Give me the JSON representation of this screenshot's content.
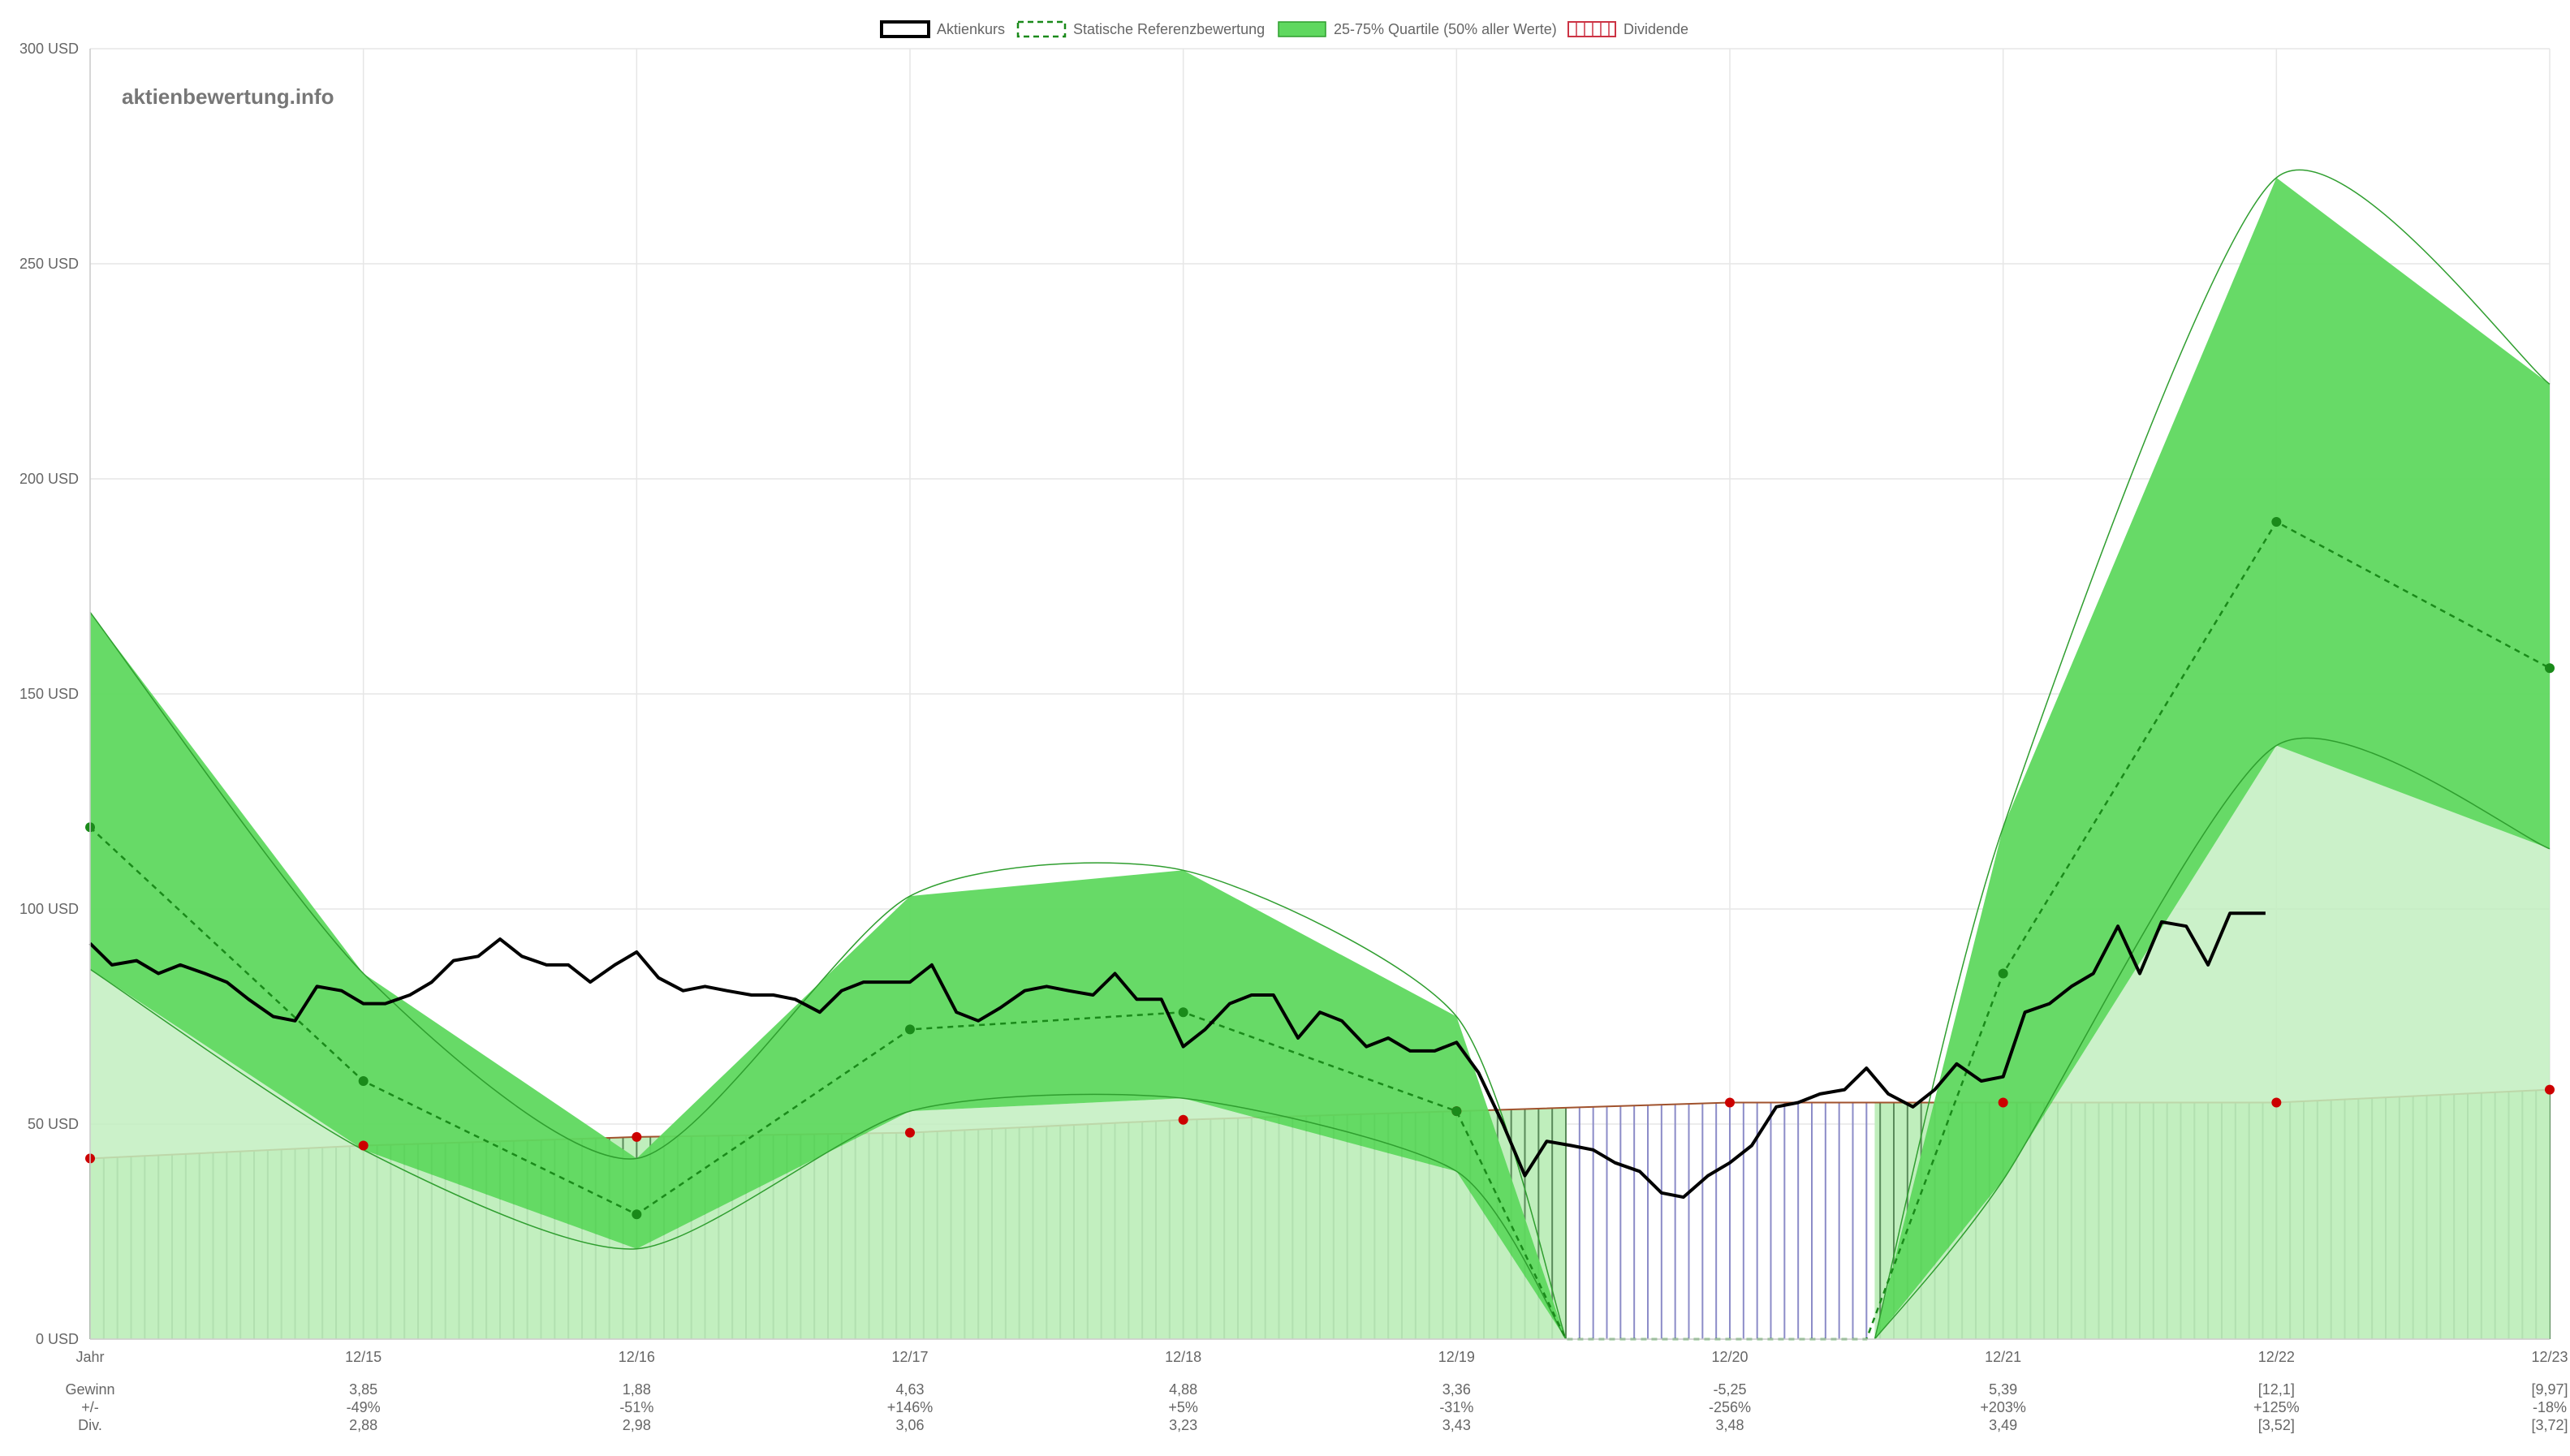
{
  "watermark": "aktienbewertung.info",
  "legend": [
    {
      "label": "Aktienkurs",
      "swatch": "line-black"
    },
    {
      "label": "Statische Referenzbewertung",
      "swatch": "dashed-green"
    },
    {
      "label": "25-75% Quartile (50% aller Werte)",
      "swatch": "fill-green"
    },
    {
      "label": "Dividende",
      "swatch": "hatch-red"
    }
  ],
  "colors": {
    "price": "#000000",
    "reference": "#1a8a1a",
    "band_upper": "#5fd85f",
    "band_lower": "#c2efc0",
    "band_edge": "#2f9e2f",
    "dividend_fill_green": "#bfeebc",
    "dividend_hatch_green": "#5a8a5a",
    "dividend_hatch_blue": "#8c8cc8",
    "dividend_line": "#a0522d",
    "dividend_marker": "#cc0000",
    "grid": "#e6e6e6"
  },
  "chart_data": {
    "type": "line",
    "ylim": [
      0,
      300
    ],
    "y_ticks": [
      "0 USD",
      "50 USD",
      "100 USD",
      "150 USD",
      "200 USD",
      "250 USD",
      "300 USD"
    ],
    "y_tick_values": [
      0,
      50,
      100,
      150,
      200,
      250,
      300
    ],
    "x_ticks": [
      "Jahr",
      "12/15",
      "12/16",
      "12/17",
      "12/18",
      "12/19",
      "12/20",
      "12/21",
      "12/22",
      "12/23"
    ],
    "x_range": [
      2014,
      2023
    ],
    "grid": true,
    "legend_position": "top-center",
    "series": [
      {
        "name": "Aktienkurs",
        "x": [
          2014.0,
          2014.08,
          2014.17,
          2014.25,
          2014.33,
          2014.42,
          2014.5,
          2014.58,
          2014.67,
          2014.75,
          2014.83,
          2014.92,
          2015.0,
          2015.08,
          2015.17,
          2015.25,
          2015.33,
          2015.42,
          2015.5,
          2015.58,
          2015.67,
          2015.75,
          2015.83,
          2015.92,
          2016.0,
          2016.08,
          2016.17,
          2016.25,
          2016.33,
          2016.42,
          2016.5,
          2016.58,
          2016.67,
          2016.75,
          2016.83,
          2016.92,
          2017.0,
          2017.08,
          2017.17,
          2017.25,
          2017.33,
          2017.42,
          2017.5,
          2017.58,
          2017.67,
          2017.75,
          2017.83,
          2017.92,
          2018.0,
          2018.08,
          2018.17,
          2018.25,
          2018.33,
          2018.42,
          2018.5,
          2018.58,
          2018.67,
          2018.75,
          2018.83,
          2018.92,
          2019.0,
          2019.08,
          2019.17,
          2019.25,
          2019.33,
          2019.42,
          2019.5,
          2019.58,
          2019.67,
          2019.75,
          2019.83,
          2019.92,
          2020.0,
          2020.08,
          2020.17,
          2020.25,
          2020.33,
          2020.42,
          2020.5,
          2020.58,
          2020.67,
          2020.75,
          2020.83,
          2020.92,
          2021.0,
          2021.08,
          2021.17,
          2021.25,
          2021.33,
          2021.42,
          2021.5,
          2021.58,
          2021.67,
          2021.75,
          2021.83,
          2021.92,
          2021.96
        ],
        "y": [
          92,
          87,
          88,
          85,
          87,
          85,
          83,
          79,
          75,
          74,
          82,
          81,
          78,
          78,
          80,
          83,
          88,
          89,
          93,
          89,
          87,
          87,
          83,
          87,
          90,
          84,
          81,
          82,
          81,
          80,
          80,
          79,
          76,
          81,
          83,
          83,
          83,
          87,
          76,
          74,
          77,
          81,
          82,
          81,
          80,
          85,
          79,
          79,
          68,
          72,
          78,
          80,
          80,
          70,
          76,
          74,
          68,
          70,
          67,
          67,
          69,
          62,
          50,
          38,
          46,
          45,
          44,
          41,
          39,
          34,
          33,
          38,
          41,
          45,
          54,
          55,
          57,
          58,
          63,
          57,
          54,
          58,
          64,
          60,
          61,
          76,
          78,
          82,
          85,
          96,
          85,
          97,
          96,
          87,
          99,
          99,
          99
        ]
      },
      {
        "name": "Statische Referenzbewertung",
        "x": [
          2014,
          2015,
          2016,
          2017,
          2018,
          2019,
          2019.4,
          2020.5,
          2021,
          2022,
          2023
        ],
        "y": [
          119,
          60,
          29,
          72,
          76,
          53,
          0,
          0,
          85,
          190,
          156
        ]
      },
      {
        "name": "25-75% Quartile (50% aller Werte)",
        "x": [
          2014,
          2015,
          2016,
          2017,
          2018,
          2019,
          2019.4,
          2020.53,
          2021,
          2022,
          2023
        ],
        "upper": [
          169,
          85,
          42,
          103,
          109,
          75,
          0,
          0,
          119,
          270,
          222
        ],
        "lower": [
          86,
          44,
          21,
          53,
          56,
          39,
          0,
          0,
          37,
          138,
          114
        ]
      },
      {
        "name": "Dividende",
        "x": [
          2014,
          2015,
          2016,
          2017,
          2018,
          2019,
          2020,
          2021,
          2022,
          2023
        ],
        "y": [
          42,
          45,
          47,
          48,
          51,
          53,
          55,
          55,
          55,
          58
        ]
      }
    ],
    "table": {
      "row_labels": [
        "Gewinn",
        "+/-",
        "Div."
      ],
      "columns": [
        {
          "label": "12/15",
          "gewinn": "3,85",
          "change": "-49%",
          "div": "2,88"
        },
        {
          "label": "12/16",
          "gewinn": "1,88",
          "change": "-51%",
          "div": "2,98"
        },
        {
          "label": "12/17",
          "gewinn": "4,63",
          "change": "+146%",
          "div": "3,06"
        },
        {
          "label": "12/18",
          "gewinn": "4,88",
          "change": "+5%",
          "div": "3,23"
        },
        {
          "label": "12/19",
          "gewinn": "3,36",
          "change": "-31%",
          "div": "3,43"
        },
        {
          "label": "12/20",
          "gewinn": "-5,25",
          "change": "-256%",
          "div": "3,48"
        },
        {
          "label": "12/21",
          "gewinn": "5,39",
          "change": "+203%",
          "div": "3,49"
        },
        {
          "label": "12/22",
          "gewinn": "[12,1]",
          "change": "+125%",
          "div": "[3,52]"
        },
        {
          "label": "12/23",
          "gewinn": "[9,97]",
          "change": "-18%",
          "div": "[3,72]"
        }
      ]
    }
  }
}
